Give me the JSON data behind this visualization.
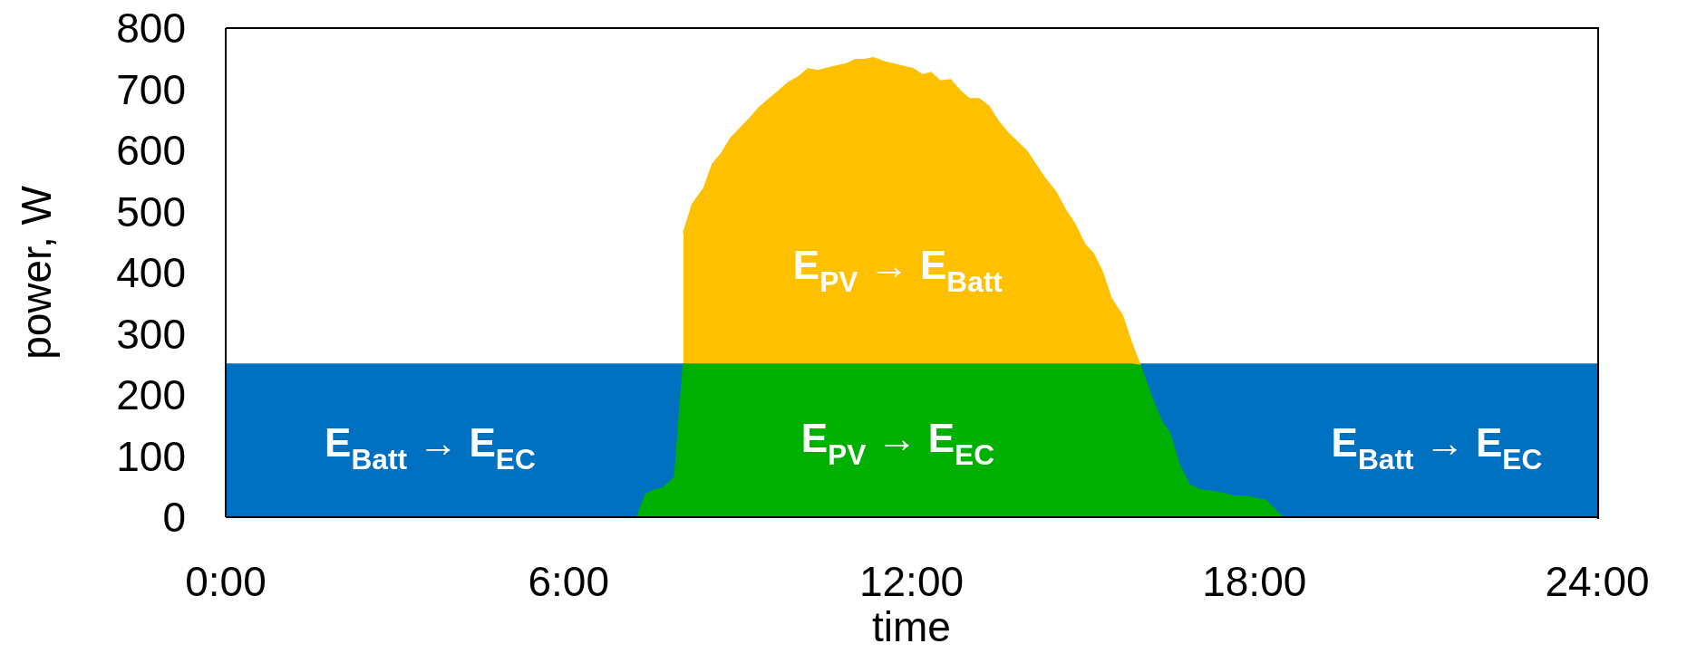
{
  "chart_data": {
    "type": "area",
    "xlabel": "time",
    "ylabel": "power, W",
    "xlim": [
      0,
      24
    ],
    "xticks": [
      {
        "value": 0,
        "label": "0:00"
      },
      {
        "value": 6,
        "label": "6:00"
      },
      {
        "value": 12,
        "label": "12:00"
      },
      {
        "value": 18,
        "label": "18:00"
      },
      {
        "value": 24,
        "label": "24:00"
      }
    ],
    "ylim": [
      0,
      800
    ],
    "yticks": [
      0,
      100,
      200,
      300,
      400,
      500,
      600,
      700,
      800
    ],
    "grid": false,
    "legend": false,
    "series": [
      {
        "color": "#0070c0",
        "x": [
          0,
          24
        ],
        "values": [
          250,
          250
        ]
      },
      {
        "color": "#ffc000",
        "x": [
          8.01,
          8.17,
          8.37,
          8.52,
          8.68,
          8.84,
          9.17,
          9.34,
          9.5,
          9.68,
          9.85,
          10.01,
          10.19,
          10.36,
          10.66,
          10.86,
          11.02,
          11.18,
          11.33,
          11.54,
          12.03,
          12.19,
          12.34,
          12.5,
          12.68,
          12.85,
          13.01,
          13.18,
          13.35,
          13.52,
          13.68,
          14.01,
          14.18,
          14.34,
          14.52,
          14.69,
          14.85,
          15.03,
          15.18,
          15.34,
          15.49,
          15.69,
          15.84,
          16.0
        ],
        "values": [
          464,
          512,
          538,
          577,
          595,
          620,
          652,
          670,
          683,
          697,
          711,
          719,
          733,
          730,
          737,
          741,
          748,
          748,
          751,
          744,
          733,
          723,
          727,
          713,
          715,
          697,
          684,
          684,
          672,
          647,
          629,
          599,
          575,
          553,
          532,
          503,
          480,
          446,
          431,
          400,
          358,
          329,
          287,
          248
        ]
      },
      {
        "color": "#00b000",
        "x": [
          7.2,
          7.35,
          7.5,
          7.66,
          7.86,
          8.01,
          8.17,
          8.37,
          8.52,
          8.68,
          8.84,
          9.17,
          9.34,
          9.5,
          9.68,
          9.85,
          10.01,
          10.19,
          10.36,
          10.66,
          10.86,
          11.02,
          11.18,
          11.33,
          11.54,
          12.03,
          12.19,
          12.34,
          12.5,
          12.68,
          12.85,
          13.01,
          13.18,
          13.35,
          13.52,
          13.68,
          14.01,
          14.18,
          14.34,
          14.52,
          14.69,
          14.85,
          15.03,
          15.18,
          15.34,
          15.49,
          15.69,
          15.84,
          16.0,
          16.19,
          16.36,
          16.52,
          16.67,
          16.86,
          17.07,
          17.32,
          17.65,
          17.83,
          18.2,
          18.48
        ],
        "values": [
          0,
          37,
          44,
          48,
          65,
          250,
          250,
          250,
          250,
          250,
          250,
          250,
          250,
          250,
          250,
          250,
          250,
          250,
          250,
          250,
          250,
          250,
          250,
          250,
          250,
          250,
          250,
          250,
          250,
          250,
          250,
          250,
          250,
          250,
          250,
          250,
          250,
          250,
          250,
          250,
          250,
          250,
          250,
          250,
          250,
          250,
          250,
          250,
          248,
          198,
          159,
          136,
          88,
          52,
          44,
          41,
          34,
          34,
          27,
          0
        ]
      }
    ],
    "annotations": [
      "E$_{Batt}$ → E$_{EC}$",
      "E$_{PV}$ → E$_{Batt}$",
      "E$_{PV}$ → E$_{EC}$",
      "E$_{Batt}$ → E$_{EC}$"
    ]
  }
}
